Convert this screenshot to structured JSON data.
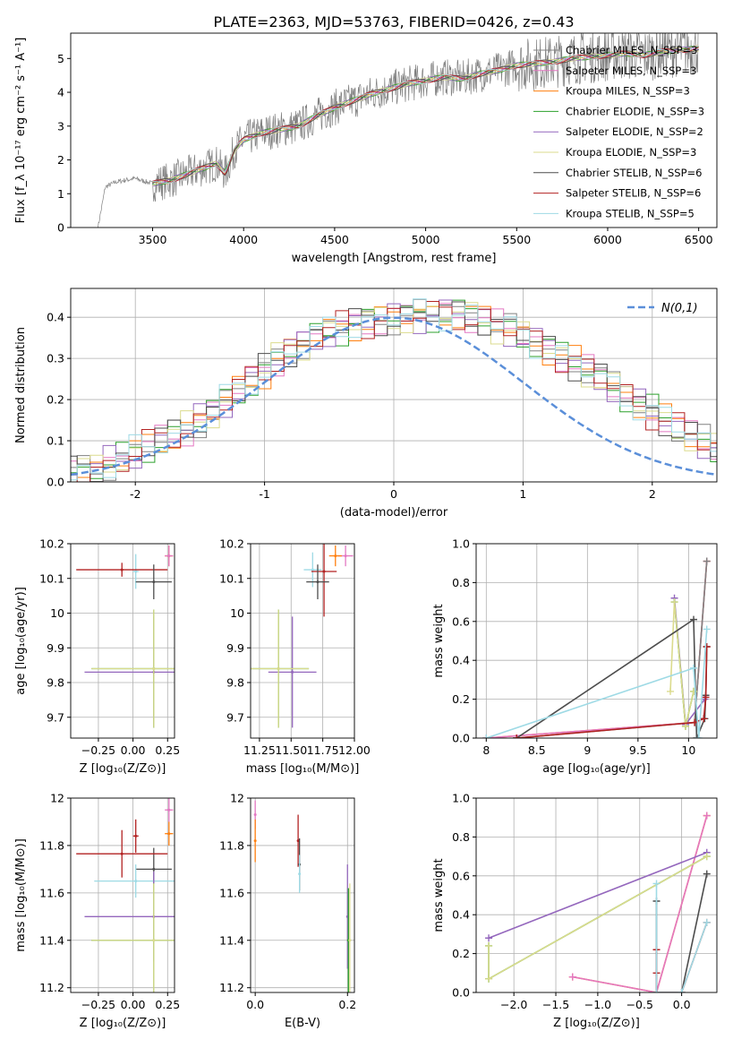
{
  "figure_title": "PLATE=2363, MJD=53763, FIBERID=0426, z=0.43",
  "palette": {
    "chabrier_miles": "#808080",
    "salpeter_miles": "#e377c2",
    "kroupa_miles": "#ff7f0e",
    "chabrier_elodie": "#2ca02c",
    "salpeter_elodie": "#9467bd",
    "kroupa_elodie": "#dbdb8d",
    "chabrier_stelib": "#4d4d4d",
    "salpeter_stelib": "#b22222",
    "kroupa_stelib": "#9edae5",
    "data": "#808080",
    "normal": "#5b8fd9"
  },
  "chart_data": [
    {
      "id": "spectrum",
      "type": "line",
      "xlabel": "wavelength [Angstrom, rest frame]",
      "ylabel": "Flux [f_λ 10⁻¹⁷ erg cm⁻² s⁻¹ A⁻¹]",
      "xlim": [
        3050,
        6600
      ],
      "ylim": [
        0,
        5.75
      ],
      "xticks": [
        3500,
        4000,
        4500,
        5000,
        5500,
        6000,
        6500
      ],
      "yticks": [
        0,
        1,
        2,
        3,
        4,
        5
      ],
      "grid": false,
      "legend_position": "right",
      "series": [
        {
          "name": "Chabrier MILES, N_SSP=3",
          "color": "#808080"
        },
        {
          "name": "Salpeter MILES, N_SSP=3",
          "color": "#e377c2"
        },
        {
          "name": "Kroupa MILES, N_SSP=3",
          "color": "#ff7f0e"
        },
        {
          "name": "Chabrier ELODIE, N_SSP=3",
          "color": "#2ca02c"
        },
        {
          "name": "Salpeter ELODIE, N_SSP=2",
          "color": "#9467bd"
        },
        {
          "name": "Kroupa ELODIE, N_SSP=3",
          "color": "#dbdb8d"
        },
        {
          "name": "Chabrier STELIB, N_SSP=6",
          "color": "#4d4d4d"
        },
        {
          "name": "Salpeter STELIB, N_SSP=6",
          "color": "#b22222"
        },
        {
          "name": "Kroupa STELIB, N_SSP=5",
          "color": "#9edae5"
        }
      ],
      "continuum": [
        [
          3200,
          0
        ],
        [
          3240,
          1.2
        ],
        [
          3300,
          1.35
        ],
        [
          3400,
          1.45
        ],
        [
          3500,
          1.3
        ],
        [
          3600,
          1.4
        ],
        [
          3700,
          1.6
        ],
        [
          3800,
          1.8
        ],
        [
          3850,
          1.9
        ],
        [
          3900,
          1.6
        ],
        [
          3950,
          2.3
        ],
        [
          4000,
          2.6
        ],
        [
          4100,
          2.8
        ],
        [
          4200,
          2.9
        ],
        [
          4300,
          3.0
        ],
        [
          4400,
          3.3
        ],
        [
          4500,
          3.55
        ],
        [
          4600,
          3.75
        ],
        [
          4700,
          3.95
        ],
        [
          4800,
          4.1
        ],
        [
          4900,
          4.25
        ],
        [
          5000,
          4.35
        ],
        [
          5100,
          4.45
        ],
        [
          5200,
          4.4
        ],
        [
          5300,
          4.55
        ],
        [
          5400,
          4.65
        ],
        [
          5500,
          4.8
        ],
        [
          5600,
          4.85
        ],
        [
          5700,
          4.9
        ],
        [
          5800,
          5.0
        ],
        [
          5900,
          5.05
        ],
        [
          6000,
          5.1
        ],
        [
          6100,
          5.15
        ],
        [
          6200,
          5.1
        ],
        [
          6300,
          5.2
        ],
        [
          6400,
          5.25
        ],
        [
          6500,
          5.3
        ]
      ]
    },
    {
      "id": "residuals",
      "type": "line",
      "xlabel": "(data-model)/error",
      "ylabel": "Normed distribution",
      "xlim": [
        -2.5,
        2.5
      ],
      "ylim": [
        0,
        0.47
      ],
      "xticks": [
        -2,
        -1,
        0,
        1,
        2
      ],
      "yticks": [
        0.0,
        0.1,
        0.2,
        0.3,
        0.4
      ],
      "grid": true,
      "legend_position": "top-right",
      "normal_curve": {
        "name": "N(0,1)",
        "mean": 0,
        "sigma": 1
      },
      "bin_width": 0.1,
      "histogram_envelope": [
        0.02,
        0.025,
        0.03,
        0.045,
        0.055,
        0.07,
        0.085,
        0.1,
        0.115,
        0.13,
        0.15,
        0.17,
        0.195,
        0.22,
        0.245,
        0.27,
        0.3,
        0.32,
        0.335,
        0.35,
        0.365,
        0.375,
        0.385,
        0.39,
        0.395,
        0.4,
        0.4,
        0.405,
        0.405,
        0.41,
        0.41,
        0.405,
        0.395,
        0.38,
        0.37,
        0.355,
        0.34,
        0.325,
        0.305,
        0.29,
        0.27,
        0.25,
        0.23,
        0.21,
        0.19,
        0.17,
        0.15,
        0.13,
        0.11,
        0.095,
        0.08
      ]
    },
    {
      "id": "age-vs-z",
      "type": "scatter",
      "xlabel": "Z [log₁₀(Z/Z⊙)]",
      "ylabel": "age  [log₁₀(age/yr)]",
      "xlim": [
        -0.45,
        0.3
      ],
      "ylim": [
        9.64,
        10.2
      ],
      "xticks": [
        -0.25,
        0.0,
        0.25
      ],
      "xticklabels": [
        "−0.25",
        "0.00",
        "0.25"
      ],
      "yticks": [
        9.7,
        9.8,
        9.9,
        10.0,
        10.1,
        10.2
      ],
      "grid": true,
      "points": [
        {
          "x": 0.26,
          "y": 10.165,
          "xerr": 0.03,
          "yerr": 0.03,
          "color": "#ff7f0e"
        },
        {
          "x": 0.26,
          "y": 10.165,
          "xerr": 0.03,
          "yerr": 0.03,
          "color": "#e377c2"
        },
        {
          "x": 0.02,
          "y": 10.12,
          "xerr": 0.02,
          "yerr": 0.05,
          "color": "#9edae5"
        },
        {
          "x": -0.08,
          "y": 10.125,
          "xerr": 0.33,
          "yerr": 0.02,
          "color": "#b22222"
        },
        {
          "x": 0.15,
          "y": 10.09,
          "xerr": 0.13,
          "yerr": 0.05,
          "color": "#4d4d4d"
        },
        {
          "x": 0.15,
          "y": 9.83,
          "xerr": 0.5,
          "yerr": 0.16,
          "color": "#9467bd"
        },
        {
          "x": 0.15,
          "y": 9.84,
          "xerr": 0.45,
          "yerr": 0.17,
          "color": "#2ca02c"
        },
        {
          "x": 0.15,
          "y": 9.84,
          "xerr": 0.45,
          "yerr": 0.17,
          "color": "#dbdb8d"
        }
      ]
    },
    {
      "id": "age-vs-mass",
      "type": "scatter",
      "xlabel": "mass [log₁₀(M/M⊙)]",
      "ylabel": "",
      "xlim": [
        11.18,
        12.0
      ],
      "ylim": [
        9.64,
        10.2
      ],
      "xticks": [
        11.25,
        11.5,
        11.75,
        12.0
      ],
      "xticklabels": [
        "11.25",
        "11.50",
        "11.75",
        "12.00"
      ],
      "yticks": [
        9.7,
        9.8,
        9.9,
        10.0,
        10.1,
        10.2
      ],
      "grid": true,
      "points": [
        {
          "x": 11.93,
          "y": 10.165,
          "xerr": 0.06,
          "yerr": 0.03,
          "color": "#e377c2"
        },
        {
          "x": 11.85,
          "y": 10.165,
          "xerr": 0.05,
          "yerr": 0.03,
          "color": "#ff7f0e"
        },
        {
          "x": 11.67,
          "y": 10.125,
          "xerr": 0.07,
          "yerr": 0.05,
          "color": "#9edae5"
        },
        {
          "x": 11.76,
          "y": 10.12,
          "xerr": 0.1,
          "yerr": 0.13,
          "color": "#b22222"
        },
        {
          "x": 11.71,
          "y": 10.09,
          "xerr": 0.09,
          "yerr": 0.05,
          "color": "#4d4d4d"
        },
        {
          "x": 11.51,
          "y": 9.83,
          "xerr": 0.19,
          "yerr": 0.16,
          "color": "#9467bd"
        },
        {
          "x": 11.4,
          "y": 9.84,
          "xerr": 0.24,
          "yerr": 0.17,
          "color": "#2ca02c"
        },
        {
          "x": 11.4,
          "y": 9.84,
          "xerr": 0.24,
          "yerr": 0.17,
          "color": "#dbdb8d"
        }
      ]
    },
    {
      "id": "weight-vs-age",
      "type": "line",
      "xlabel": "age  [log₁₀(age/yr)]",
      "ylabel": "mass weight",
      "xlim": [
        7.9,
        10.28
      ],
      "ylim": [
        0,
        1.0
      ],
      "xticks": [
        8.0,
        8.5,
        9.0,
        9.5,
        10.0
      ],
      "yticks": [
        0.0,
        0.2,
        0.4,
        0.6,
        0.8,
        1.0
      ],
      "grid": true,
      "series": [
        {
          "color": "#ff7f0e",
          "points": [
            [
              8.0,
              0.0
            ],
            [
              10.06,
              0.08
            ],
            [
              10.18,
              0.91
            ]
          ]
        },
        {
          "color": "#e377c2",
          "points": [
            [
              8.0,
              0.0
            ],
            [
              10.06,
              0.08
            ],
            [
              10.18,
              0.91
            ]
          ]
        },
        {
          "color": "#808080",
          "points": [
            [
              8.3,
              0.0
            ],
            [
              10.06,
              0.08
            ],
            [
              10.18,
              0.91
            ]
          ]
        },
        {
          "color": "#9467bd",
          "points": [
            [
              9.86,
              0.72
            ],
            [
              9.97,
              0.07
            ],
            [
              10.16,
              0.2
            ]
          ]
        },
        {
          "color": "#2ca02c",
          "points": [
            [
              9.86,
              0.7
            ],
            [
              9.97,
              0.06
            ],
            [
              10.05,
              0.24
            ]
          ]
        },
        {
          "color": "#dbdb8d",
          "points": [
            [
              9.82,
              0.24
            ],
            [
              9.86,
              0.7
            ],
            [
              9.97,
              0.06
            ],
            [
              10.05,
              0.24
            ]
          ]
        },
        {
          "color": "#4d4d4d",
          "points": [
            [
              8.3,
              0.0
            ],
            [
              10.05,
              0.61
            ],
            [
              10.08,
              0.0
            ],
            [
              10.16,
              0.1
            ],
            [
              10.17,
              0.22
            ],
            [
              10.18,
              0.47
            ]
          ]
        },
        {
          "color": "#b22222",
          "points": [
            [
              8.3,
              0.0
            ],
            [
              10.06,
              0.08
            ],
            [
              10.15,
              0.1
            ],
            [
              10.17,
              0.21
            ],
            [
              10.18,
              0.47
            ]
          ]
        },
        {
          "color": "#9edae5",
          "points": [
            [
              8.0,
              0.0
            ],
            [
              10.05,
              0.36
            ],
            [
              10.1,
              0.0
            ],
            [
              10.18,
              0.56
            ]
          ]
        }
      ]
    },
    {
      "id": "mass-vs-z",
      "type": "scatter",
      "xlabel": "Z [log₁₀(Z/Z⊙)]",
      "ylabel": "mass [log₁₀(M/M⊙)]",
      "xlim": [
        -0.45,
        0.3
      ],
      "ylim": [
        11.18,
        12.0
      ],
      "xticks": [
        -0.25,
        0.0,
        0.25
      ],
      "xticklabels": [
        "−0.25",
        "0.00",
        "0.25"
      ],
      "yticks": [
        11.2,
        11.4,
        11.6,
        11.8,
        12.0
      ],
      "grid": true,
      "points": [
        {
          "x": 0.26,
          "y": 11.95,
          "xerr": 0.03,
          "yerr": 0.05,
          "color": "#e377c2"
        },
        {
          "x": 0.26,
          "y": 11.85,
          "xerr": 0.03,
          "yerr": 0.05,
          "color": "#ff7f0e"
        },
        {
          "x": 0.02,
          "y": 11.84,
          "xerr": 0.02,
          "yerr": 0.07,
          "color": "#b22222"
        },
        {
          "x": 0.15,
          "y": 11.7,
          "xerr": 0.13,
          "yerr": 0.09,
          "color": "#4d4d4d"
        },
        {
          "x": -0.08,
          "y": 11.765,
          "xerr": 0.33,
          "yerr": 0.1,
          "color": "#b22222"
        },
        {
          "x": 0.02,
          "y": 11.65,
          "xerr": 0.3,
          "yerr": 0.07,
          "color": "#9edae5"
        },
        {
          "x": 0.15,
          "y": 11.5,
          "xerr": 0.5,
          "yerr": 0.19,
          "color": "#9467bd"
        },
        {
          "x": 0.15,
          "y": 11.4,
          "xerr": 0.45,
          "yerr": 0.24,
          "color": "#2ca02c"
        },
        {
          "x": 0.15,
          "y": 11.4,
          "xerr": 0.45,
          "yerr": 0.24,
          "color": "#dbdb8d"
        }
      ]
    },
    {
      "id": "mass-vs-ebv",
      "type": "scatter",
      "xlabel": "E(B-V)",
      "ylabel": "",
      "xlim": [
        -0.01,
        0.215
      ],
      "ylim": [
        11.18,
        12.0
      ],
      "xticks": [
        0.0,
        0.2
      ],
      "xticklabels": [
        "0.0",
        "0.2"
      ],
      "yticks": [
        11.2,
        11.4,
        11.6,
        11.8,
        12.0
      ],
      "grid": true,
      "points": [
        {
          "x": 0.0,
          "y": 11.93,
          "xerr": 0.0,
          "yerr": 0.06,
          "color": "#e377c2"
        },
        {
          "x": 0.0,
          "y": 11.82,
          "xerr": 0.0,
          "yerr": 0.09,
          "color": "#ff7f0e"
        },
        {
          "x": 0.093,
          "y": 11.82,
          "xerr": 0.0,
          "yerr": 0.11,
          "color": "#b22222"
        },
        {
          "x": 0.096,
          "y": 11.72,
          "xerr": 0.0,
          "yerr": 0.11,
          "color": "#4d4d4d"
        },
        {
          "x": 0.096,
          "y": 11.68,
          "xerr": 0.0,
          "yerr": 0.08,
          "color": "#9edae5"
        },
        {
          "x": 0.2,
          "y": 11.5,
          "xerr": 0.0,
          "yerr": 0.22,
          "color": "#9467bd"
        },
        {
          "x": 0.202,
          "y": 11.4,
          "xerr": 0.0,
          "yerr": 0.22,
          "color": "#2ca02c"
        },
        {
          "x": 0.205,
          "y": 11.4,
          "xerr": 0.0,
          "yerr": 0.24,
          "color": "#dbdb8d"
        }
      ]
    },
    {
      "id": "weight-vs-z",
      "type": "line",
      "xlabel": "Z [log₁₀(Z/Z⊙)]",
      "ylabel": "mass weight",
      "xlim": [
        -2.45,
        0.42
      ],
      "ylim": [
        0,
        1.0
      ],
      "xticks": [
        -2.0,
        -1.5,
        -1.0,
        -0.5,
        0.0
      ],
      "xticklabels": [
        "−2.0",
        "−1.5",
        "−1.0",
        "−0.5",
        "0.0"
      ],
      "yticks": [
        0.0,
        0.2,
        0.4,
        0.6,
        0.8,
        1.0
      ],
      "grid": true,
      "series": [
        {
          "color": "#ff7f0e",
          "points": [
            [
              -1.3,
              0.08
            ],
            [
              -0.3,
              0.0
            ],
            [
              0.3,
              0.91
            ]
          ]
        },
        {
          "color": "#e377c2",
          "points": [
            [
              -1.3,
              0.08
            ],
            [
              -0.3,
              0.0
            ],
            [
              0.3,
              0.91
            ]
          ]
        },
        {
          "color": "#9467bd",
          "points": [
            [
              -2.3,
              0.28
            ],
            [
              0.3,
              0.72
            ]
          ]
        },
        {
          "color": "#2ca02c",
          "points": [
            [
              -2.3,
              0.24
            ],
            [
              -2.3,
              0.07
            ],
            [
              0.3,
              0.7
            ]
          ]
        },
        {
          "color": "#dbdb8d",
          "points": [
            [
              -2.3,
              0.24
            ],
            [
              -2.3,
              0.07
            ],
            [
              0.3,
              0.7
            ]
          ]
        },
        {
          "color": "#4d4d4d",
          "points": [
            [
              -0.3,
              0.47
            ],
            [
              -0.3,
              0.0
            ],
            [
              0.0,
              0.0
            ],
            [
              0.3,
              0.61
            ]
          ]
        },
        {
          "color": "#b22222",
          "points": [
            [
              -0.3,
              0.22
            ],
            [
              -0.3,
              0.1
            ],
            [
              -0.3,
              0.0
            ],
            [
              0.0,
              0.0
            ],
            [
              0.3,
              0.36
            ]
          ]
        },
        {
          "color": "#9edae5",
          "points": [
            [
              -0.3,
              0.56
            ],
            [
              -0.3,
              0.0
            ],
            [
              0.0,
              0.0
            ],
            [
              0.3,
              0.36
            ]
          ]
        }
      ]
    }
  ]
}
